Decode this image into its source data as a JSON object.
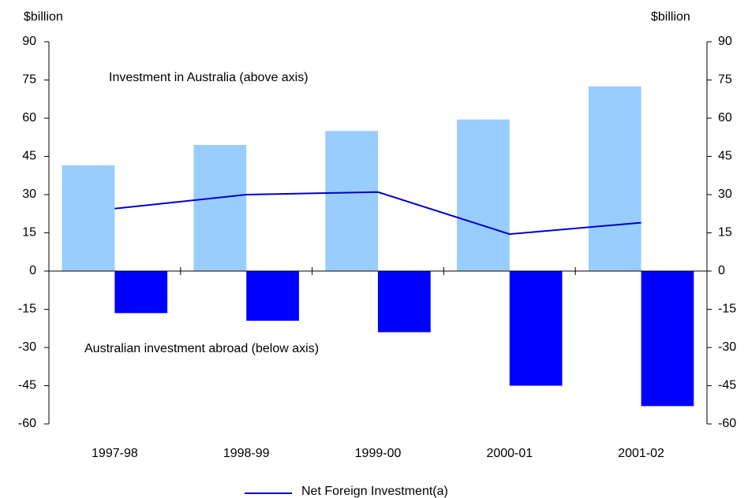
{
  "chart_data": {
    "type": "bar",
    "ylabel": "$billion",
    "y2label": "$billion",
    "annotations": [
      "Investment in Australia (above axis)",
      "Australian investment abroad (below axis)"
    ],
    "categories": [
      "1997-98",
      "1998-99",
      "1999-00",
      "2000-01",
      "2001-02"
    ],
    "series": [
      {
        "type": "bar",
        "color": "#99ccff",
        "values": [
          41.5,
          49.5,
          55,
          59.5,
          72.5
        ]
      },
      {
        "type": "bar",
        "color": "#0000ff",
        "values": [
          -16.5,
          -19.5,
          -24,
          -45,
          -53
        ]
      },
      {
        "type": "line",
        "name": "Net Foreign Investment(a)",
        "color": "#0000cc",
        "values": [
          24.5,
          30,
          31,
          14.5,
          19
        ]
      }
    ],
    "ylim": [
      -60,
      90
    ],
    "yticks": [
      -60,
      -45,
      -30,
      -15,
      0,
      15,
      30,
      45,
      60,
      75,
      90
    ],
    "y2lim": [
      -60,
      90
    ],
    "y2ticks": [
      -60,
      -45,
      -30,
      -15,
      0,
      15,
      30,
      45,
      60,
      75,
      90
    ],
    "grid": false,
    "legend": "bottom"
  }
}
